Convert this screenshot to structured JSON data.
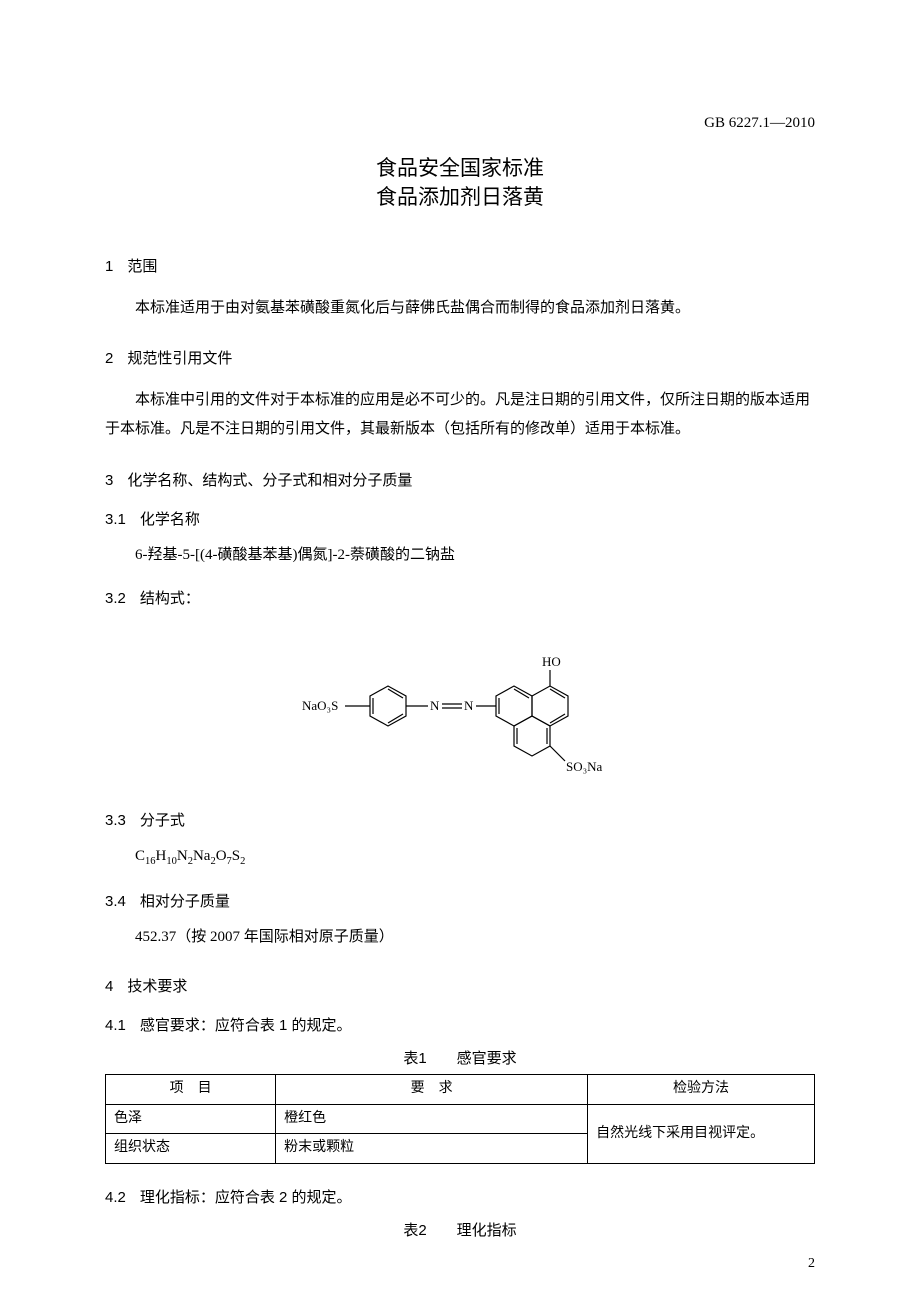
{
  "standard_code": "GB 6227.1—2010",
  "title_line1": "食品安全国家标准",
  "title_line2": "食品添加剂日落黄",
  "sections": {
    "s1": {
      "num": "1",
      "title": "范围"
    },
    "s2": {
      "num": "2",
      "title": "规范性引用文件"
    },
    "s3": {
      "num": "3",
      "title": "化学名称、结构式、分子式和相对分子质量"
    },
    "s3_1": {
      "num": "3.1",
      "title": "化学名称"
    },
    "s3_2": {
      "num": "3.2",
      "title": "结构式："
    },
    "s3_3": {
      "num": "3.3",
      "title": "分子式"
    },
    "s3_4": {
      "num": "3.4",
      "title": "相对分子质量"
    },
    "s4": {
      "num": "4",
      "title": "技术要求"
    },
    "s4_1": {
      "num": "4.1",
      "title": "感官要求：应符合表 1 的规定。"
    },
    "s4_2": {
      "num": "4.2",
      "title": "理化指标：应符合表 2 的规定。"
    }
  },
  "paragraphs": {
    "p1": "本标准适用于由对氨基苯磺酸重氮化后与薛佛氏盐偶合而制得的食品添加剂日落黄。",
    "p2": "本标准中引用的文件对于本标准的应用是必不可少的。凡是注日期的引用文件，仅所注日期的版本适用于本标准。凡是不注日期的引用文件，其最新版本（包括所有的修改单）适用于本标准。",
    "chem_name": "6-羟基-5-[(4-磺酸基苯基)偶氮]-2-萘磺酸的二钠盐",
    "rel_mass": "452.37（按 2007 年国际相对原子质量）"
  },
  "structure_labels": {
    "left": "NaO₃S",
    "top_right": "HO",
    "bottom_right": "SO₃Na",
    "azo": "N═N"
  },
  "molecular_formula": {
    "parts": [
      {
        "t": "C",
        "sub": "16"
      },
      {
        "t": "H",
        "sub": "10"
      },
      {
        "t": "N",
        "sub": "2"
      },
      {
        "t": "Na",
        "sub": "2"
      },
      {
        "t": "O",
        "sub": "7"
      },
      {
        "t": "S",
        "sub": "2"
      }
    ]
  },
  "table1": {
    "caption_num": "表1",
    "caption_title": "感官要求",
    "headers": {
      "item": "项　目",
      "req": "要　求",
      "method": "检验方法"
    },
    "rows": [
      {
        "item": "色泽",
        "req": "橙红色"
      },
      {
        "item": "组织状态",
        "req": "粉末或颗粒"
      }
    ],
    "method_combined": "自然光线下采用目视评定。"
  },
  "table2": {
    "caption_num": "表2",
    "caption_title": "理化指标"
  },
  "page_number": "2",
  "colors": {
    "text": "#000000",
    "background": "#ffffff",
    "border": "#000000"
  }
}
